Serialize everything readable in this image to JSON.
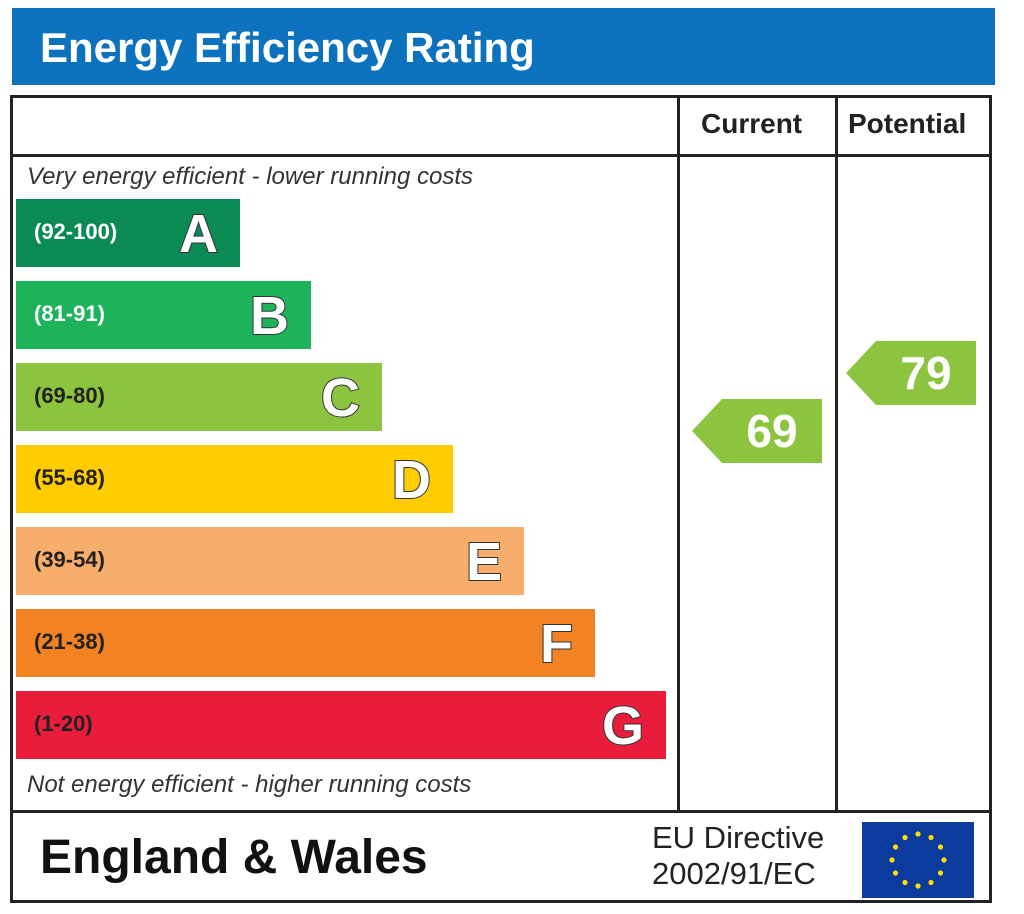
{
  "title": "Energy Efficiency Rating",
  "columns": {
    "current": "Current",
    "potential": "Potential"
  },
  "top_note": "Very energy efficient - lower running costs",
  "bottom_note": "Not energy efficient - higher running costs",
  "footer": {
    "region": "England & Wales",
    "directive_line1": "EU Directive",
    "directive_line2": "2002/91/EC"
  },
  "colors": {
    "title_bg": "#0c72be",
    "A": "#0b8a55",
    "B": "#1db35a",
    "C": "#8cc43f",
    "D": "#ffcc00",
    "E": "#f7ad6b",
    "F": "#f38222",
    "G": "#e91d3b",
    "eu_flag": "#0b3b9c",
    "eu_stars": "#ffdd00"
  },
  "chart_data": {
    "type": "table",
    "bands": [
      {
        "letter": "A",
        "range": "(92-100)",
        "min": 92,
        "max": 100
      },
      {
        "letter": "B",
        "range": "(81-91)",
        "min": 81,
        "max": 91
      },
      {
        "letter": "C",
        "range": "(69-80)",
        "min": 69,
        "max": 80
      },
      {
        "letter": "D",
        "range": "(55-68)",
        "min": 55,
        "max": 68
      },
      {
        "letter": "E",
        "range": "(39-54)",
        "min": 39,
        "max": 54
      },
      {
        "letter": "F",
        "range": "(21-38)",
        "min": 21,
        "max": 38
      },
      {
        "letter": "G",
        "range": "(1-20)",
        "min": 1,
        "max": 20
      }
    ],
    "current": {
      "value": "69",
      "band": "C"
    },
    "potential": {
      "value": "79",
      "band": "C"
    }
  }
}
